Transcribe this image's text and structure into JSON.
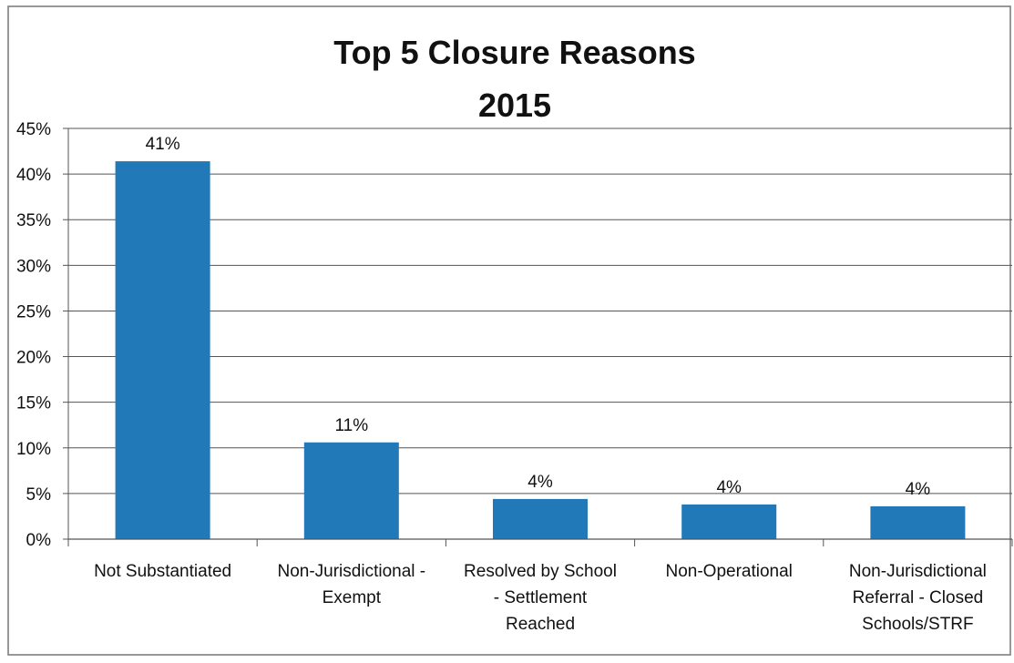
{
  "chart_data": {
    "type": "bar",
    "title": "Top 5 Closure Reasons",
    "subtitle": "2015",
    "xlabel": "",
    "ylabel": "",
    "ylim": [
      0,
      45
    ],
    "y_tick_step": 5,
    "y_tick_labels": [
      "0%",
      "5%",
      "10%",
      "15%",
      "20%",
      "25%",
      "30%",
      "35%",
      "40%",
      "45%"
    ],
    "categories": [
      "Not Substantiated",
      "Non-Jurisdictional - Exempt",
      "Resolved by School - Settlement Reached",
      "Non-Operational",
      "Non-Jurisdictional Referral - Closed Schools/STRF"
    ],
    "category_label_lines": [
      [
        "Not Substantiated"
      ],
      [
        "Non-Jurisdictional -",
        "Exempt"
      ],
      [
        "Resolved by School",
        "- Settlement",
        "Reached"
      ],
      [
        "Non-Operational"
      ],
      [
        "Non-Jurisdictional",
        "Referral - Closed",
        "Schools/STRF"
      ]
    ],
    "values": [
      41.4,
      10.6,
      4.4,
      3.8,
      3.6
    ],
    "data_labels": [
      "41%",
      "11%",
      "4%",
      "4%",
      "4%"
    ],
    "grid": true,
    "legend": "none",
    "bar_color": "#2179B8",
    "grid_color": "#555555",
    "frame_color": "#777777"
  }
}
